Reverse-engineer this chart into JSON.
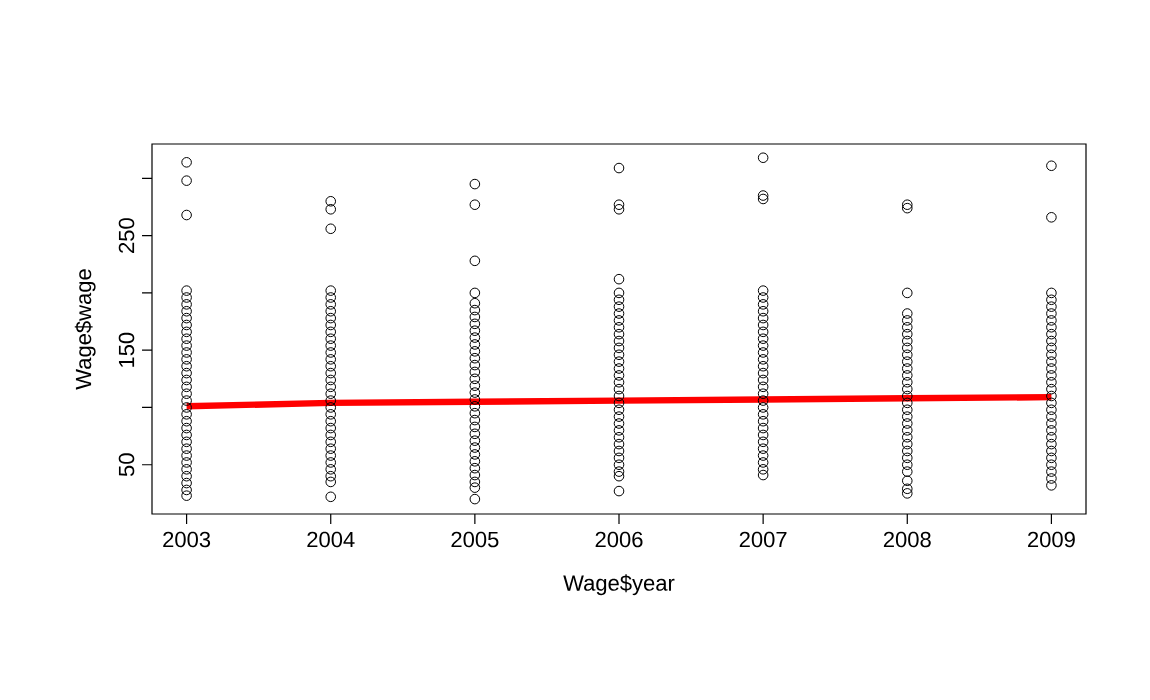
{
  "chart_data": {
    "type": "scatter",
    "xlabel": "Wage$year",
    "ylabel": "Wage$wage",
    "marker": "circle",
    "xlim": [
      2002.76,
      2009.24
    ],
    "ylim": [
      7,
      330
    ],
    "xticks": [
      2003,
      2004,
      2005,
      2006,
      2007,
      2008,
      2009
    ],
    "yticks": [
      50,
      {
        "value": 100,
        "label": null
      },
      150,
      {
        "value": 200,
        "label": null
      },
      250,
      {
        "value": 300,
        "label": null
      }
    ],
    "series": [
      {
        "color": "#000000",
        "x": [
          2003,
          2003,
          2003,
          2003,
          2003,
          2003,
          2003,
          2003,
          2003,
          2003,
          2003,
          2003,
          2003,
          2003,
          2003,
          2003,
          2003,
          2003,
          2003,
          2003,
          2003,
          2003,
          2003,
          2003,
          2003,
          2003,
          2003,
          2003,
          2003,
          2003,
          2003,
          2003,
          2003,
          2003,
          2004,
          2004,
          2004,
          2004,
          2004,
          2004,
          2004,
          2004,
          2004,
          2004,
          2004,
          2004,
          2004,
          2004,
          2004,
          2004,
          2004,
          2004,
          2004,
          2004,
          2004,
          2004,
          2004,
          2004,
          2004,
          2004,
          2004,
          2004,
          2004,
          2004,
          2004,
          2004,
          2004,
          2005,
          2005,
          2005,
          2005,
          2005,
          2005,
          2005,
          2005,
          2005,
          2005,
          2005,
          2005,
          2005,
          2005,
          2005,
          2005,
          2005,
          2005,
          2005,
          2005,
          2005,
          2005,
          2005,
          2005,
          2005,
          2005,
          2005,
          2005,
          2005,
          2005,
          2005,
          2005,
          2005,
          2006,
          2006,
          2006,
          2006,
          2006,
          2006,
          2006,
          2006,
          2006,
          2006,
          2006,
          2006,
          2006,
          2006,
          2006,
          2006,
          2006,
          2006,
          2006,
          2006,
          2006,
          2006,
          2006,
          2006,
          2006,
          2006,
          2006,
          2006,
          2006,
          2006,
          2006,
          2006,
          2006,
          2007,
          2007,
          2007,
          2007,
          2007,
          2007,
          2007,
          2007,
          2007,
          2007,
          2007,
          2007,
          2007,
          2007,
          2007,
          2007,
          2007,
          2007,
          2007,
          2007,
          2007,
          2007,
          2007,
          2007,
          2007,
          2007,
          2007,
          2007,
          2007,
          2007,
          2007,
          2008,
          2008,
          2008,
          2008,
          2008,
          2008,
          2008,
          2008,
          2008,
          2008,
          2008,
          2008,
          2008,
          2008,
          2008,
          2008,
          2008,
          2008,
          2008,
          2008,
          2008,
          2008,
          2008,
          2008,
          2008,
          2008,
          2008,
          2008,
          2008,
          2008,
          2009,
          2009,
          2009,
          2009,
          2009,
          2009,
          2009,
          2009,
          2009,
          2009,
          2009,
          2009,
          2009,
          2009,
          2009,
          2009,
          2009,
          2009,
          2009,
          2009,
          2009,
          2009,
          2009,
          2009,
          2009,
          2009,
          2009,
          2009,
          2009,
          2009,
          2009
        ],
        "values": [
          314,
          298,
          268,
          202,
          196,
          190,
          184,
          178,
          172,
          166,
          160,
          154,
          148,
          142,
          136,
          130,
          124,
          118,
          112,
          106,
          100,
          94,
          88,
          82,
          76,
          70,
          64,
          58,
          52,
          46,
          40,
          34,
          28,
          23,
          280,
          273,
          256,
          202,
          196,
          190,
          184,
          178,
          172,
          166,
          160,
          154,
          148,
          142,
          136,
          130,
          124,
          118,
          112,
          106,
          100,
          94,
          88,
          82,
          76,
          70,
          64,
          58,
          52,
          46,
          40,
          35,
          22,
          295,
          277,
          228,
          200,
          191,
          185,
          179,
          173,
          167,
          161,
          155,
          149,
          143,
          137,
          131,
          125,
          119,
          113,
          107,
          101,
          95,
          89,
          83,
          77,
          71,
          65,
          59,
          53,
          47,
          41,
          35,
          30,
          20,
          309,
          277,
          273,
          212,
          200,
          194,
          188,
          182,
          176,
          170,
          164,
          158,
          152,
          146,
          140,
          134,
          128,
          122,
          116,
          110,
          104,
          98,
          92,
          86,
          80,
          74,
          68,
          62,
          56,
          50,
          44,
          40,
          27,
          318,
          285,
          282,
          202,
          196,
          190,
          184,
          178,
          172,
          166,
          160,
          154,
          148,
          142,
          136,
          130,
          124,
          118,
          112,
          106,
          100,
          94,
          88,
          82,
          76,
          70,
          64,
          58,
          52,
          46,
          41,
          277,
          274,
          200,
          182,
          176,
          170,
          164,
          158,
          152,
          146,
          140,
          134,
          128,
          122,
          116,
          110,
          104,
          98,
          92,
          86,
          80,
          74,
          68,
          62,
          56,
          50,
          44,
          36,
          29,
          25,
          311,
          266,
          200,
          194,
          188,
          182,
          176,
          170,
          164,
          158,
          152,
          146,
          140,
          134,
          128,
          122,
          116,
          110,
          104,
          98,
          92,
          86,
          80,
          74,
          68,
          62,
          56,
          50,
          44,
          38,
          32
        ]
      },
      {
        "type": "line",
        "marker": "none",
        "color": "#ff0000",
        "x": [
          2003,
          2004,
          2005,
          2006,
          2007,
          2008,
          2009
        ],
        "values": [
          101,
          104,
          105,
          106,
          107,
          108,
          109
        ]
      }
    ]
  }
}
